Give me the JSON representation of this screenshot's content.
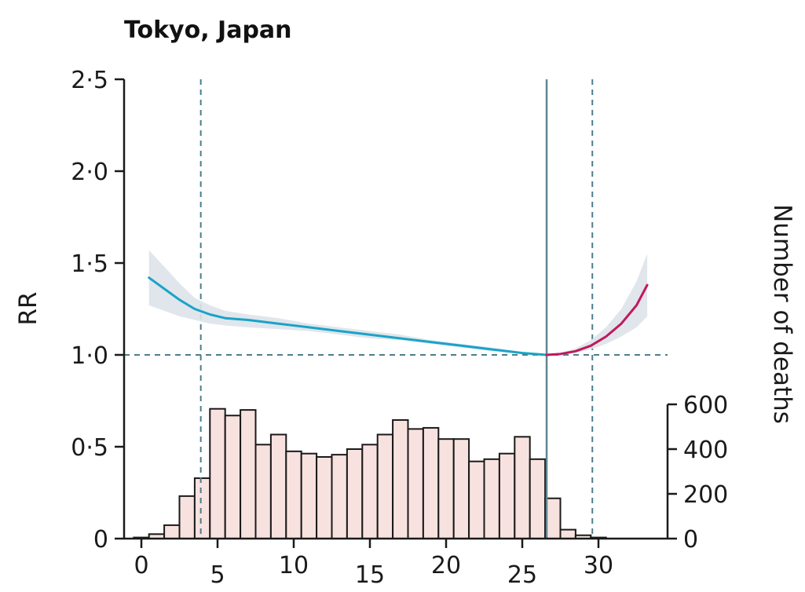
{
  "chart_data": {
    "type": "line",
    "title": "Tokyo, Japan",
    "xlabel": "",
    "ylabel": "RR",
    "y2label": "Number of deaths",
    "xlim": [
      -1,
      34
    ],
    "ylim": [
      0,
      2.5
    ],
    "y2lim": [
      0,
      600
    ],
    "x_ticks": [
      0,
      5,
      10,
      15,
      20,
      25,
      30
    ],
    "x_tick_labels": [
      "0",
      "5",
      "10",
      "15",
      "20",
      "25",
      "30"
    ],
    "y_ticks": [
      0,
      0.5,
      1.0,
      1.5,
      2.0,
      2.5
    ],
    "y_tick_labels": [
      "0",
      "0·5",
      "1·0",
      "1·5",
      "2·0",
      "2·5"
    ],
    "y2_ticks": [
      0,
      200,
      400,
      600
    ],
    "y2_tick_labels": [
      "0",
      "200",
      "400",
      "600"
    ],
    "reference_line_y": 1.0,
    "optimum_temperature": 26.6,
    "percentile_lines_x": [
      3.9,
      29.6
    ],
    "series": [
      {
        "color": "#1aa3c8",
        "x": [
          0.5,
          1.5,
          2.5,
          3.5,
          4.5,
          5.5,
          7,
          9,
          11,
          13,
          15,
          17,
          19,
          21,
          23,
          25,
          26.6
        ],
        "y": [
          1.42,
          1.36,
          1.3,
          1.25,
          1.22,
          1.2,
          1.19,
          1.17,
          1.15,
          1.13,
          1.11,
          1.09,
          1.07,
          1.05,
          1.03,
          1.01,
          1.0
        ],
        "ci_low": [
          1.27,
          1.24,
          1.21,
          1.19,
          1.17,
          1.16,
          1.15,
          1.14,
          1.13,
          1.11,
          1.09,
          1.08,
          1.06,
          1.04,
          1.02,
          1.005,
          1.0
        ],
        "ci_high": [
          1.57,
          1.48,
          1.39,
          1.31,
          1.27,
          1.24,
          1.22,
          1.2,
          1.17,
          1.15,
          1.13,
          1.11,
          1.08,
          1.06,
          1.04,
          1.015,
          1.0
        ]
      },
      {
        "color": "#c2185b",
        "x": [
          26.6,
          27.5,
          28.5,
          29.5,
          30.5,
          31.5,
          32.5,
          33.2
        ],
        "y": [
          1.0,
          1.005,
          1.02,
          1.05,
          1.1,
          1.17,
          1.27,
          1.38
        ],
        "ci_low": [
          1.0,
          1.0,
          1.01,
          1.03,
          1.06,
          1.1,
          1.15,
          1.21
        ],
        "ci_high": [
          1.0,
          1.01,
          1.035,
          1.08,
          1.15,
          1.25,
          1.4,
          1.55
        ]
      }
    ],
    "histogram": {
      "bin_start": -0.5,
      "bin_width": 1,
      "fill": "#f8e2df",
      "stroke": "#1a1a1a",
      "counts": [
        5,
        20,
        60,
        190,
        270,
        580,
        550,
        575,
        420,
        465,
        390,
        380,
        365,
        375,
        400,
        420,
        465,
        530,
        490,
        495,
        445,
        445,
        345,
        355,
        380,
        455,
        355,
        180,
        40,
        15,
        5
      ]
    }
  }
}
